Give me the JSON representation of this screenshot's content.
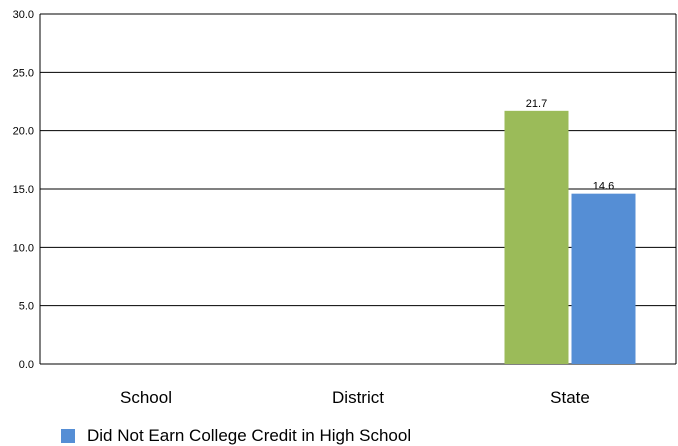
{
  "chart_data": {
    "type": "bar",
    "categories": [
      "School",
      "District",
      "State"
    ],
    "series": [
      {
        "values": [
          null,
          null,
          21.7
        ],
        "color": "#9bbb59"
      },
      {
        "name": "Did Not Earn College Credit in High School",
        "values": [
          null,
          null,
          14.6
        ],
        "color": "#558ed5"
      }
    ],
    "ylim": [
      0,
      30
    ],
    "yticks": [
      "0.0",
      "5.0",
      "10.0",
      "15.0",
      "20.0",
      "25.0",
      "30.0"
    ],
    "data_labels": [
      "21.7",
      "14.6"
    ],
    "grid": true,
    "legend_position": "bottom-left"
  }
}
